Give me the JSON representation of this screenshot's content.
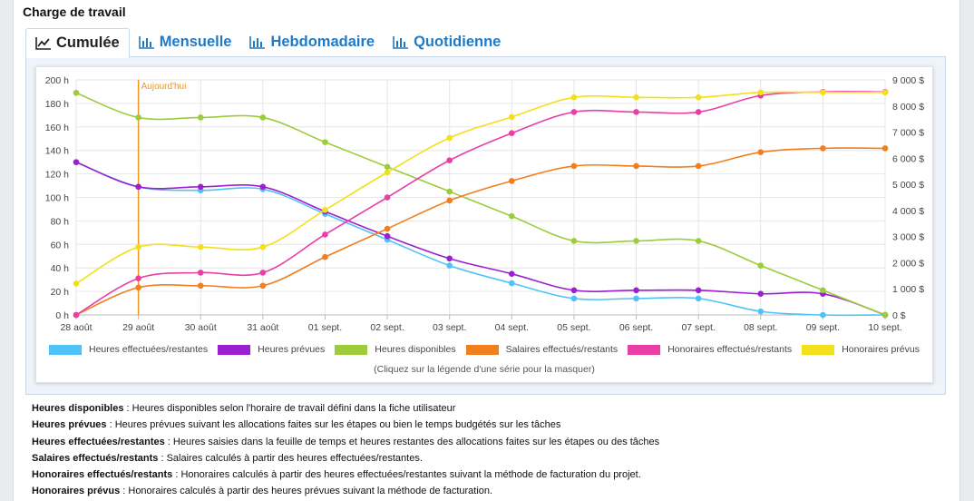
{
  "panel": {
    "title": "Charge de travail"
  },
  "tabs": [
    {
      "label": "Cumulée",
      "icon": "line-chart-icon",
      "active": true
    },
    {
      "label": "Mensuelle",
      "icon": "bar-chart-icon",
      "active": false
    },
    {
      "label": "Hebdomadaire",
      "icon": "bar-chart-icon",
      "active": false
    },
    {
      "label": "Quotidienne",
      "icon": "bar-chart-icon",
      "active": false
    }
  ],
  "chart_data": {
    "type": "line",
    "categories": [
      "28 août",
      "29 août",
      "30 août",
      "31 août",
      "01 sept.",
      "02 sept.",
      "03 sept.",
      "04 sept.",
      "05 sept.",
      "06 sept.",
      "07 sept.",
      "08 sept.",
      "09 sept.",
      "10 sept."
    ],
    "y_left": {
      "ticks": [
        "0 h",
        "20 h",
        "40 h",
        "60 h",
        "80 h",
        "100 h",
        "120 h",
        "140 h",
        "160 h",
        "180 h",
        "200 h"
      ],
      "range": [
        0,
        200
      ]
    },
    "y_right": {
      "ticks": [
        "0 $",
        "1 000 $",
        "2 000 $",
        "3 000 $",
        "4 000 $",
        "5 000 $",
        "6 000 $",
        "7 000 $",
        "8 000 $",
        "9 000 $"
      ],
      "range": [
        0,
        9000
      ]
    },
    "today_marker": {
      "label": "Aujourd'hui",
      "category": "29 août",
      "color": "#f0951f"
    },
    "grid": true,
    "legend_position": "bottom",
    "series": [
      {
        "name": "Heures effectuées/restantes",
        "axis": "left",
        "color": "#4fc3f7",
        "values": [
          130,
          109,
          106,
          107,
          86,
          64,
          42,
          27,
          14,
          14,
          14,
          3,
          0,
          0
        ]
      },
      {
        "name": "Heures prévues",
        "axis": "left",
        "color": "#9c1fd1",
        "values": [
          130,
          109,
          109,
          109,
          88,
          67,
          48,
          35,
          21,
          21,
          21,
          18,
          18,
          0
        ]
      },
      {
        "name": "Heures disponibles",
        "axis": "left",
        "color": "#9ccc3c",
        "values": [
          189,
          168,
          168,
          168,
          147,
          126,
          105,
          84,
          63,
          63,
          63,
          42,
          21,
          0
        ]
      },
      {
        "name": "Salaires effectués/restants",
        "axis": "right",
        "color": "#f07f1e",
        "values": [
          0,
          1050,
          1120,
          1120,
          2220,
          3300,
          4380,
          5130,
          5700,
          5700,
          5700,
          6230,
          6380,
          6380
        ]
      },
      {
        "name": "Honoraires effectués/restants",
        "axis": "right",
        "color": "#ea3ea7",
        "values": [
          0,
          1400,
          1620,
          1620,
          3080,
          4500,
          5920,
          6960,
          7770,
          7770,
          7770,
          8400,
          8540,
          8540
        ]
      },
      {
        "name": "Honoraires prévus",
        "axis": "right",
        "color": "#f2e11a",
        "values": [
          1200,
          2600,
          2600,
          2600,
          4020,
          5460,
          6780,
          7580,
          8330,
          8330,
          8330,
          8520,
          8520,
          8520
        ]
      }
    ]
  },
  "legend_hint": "(Cliquez sur la légende d'une série pour la masquer)",
  "definitions": [
    {
      "term": "Heures disponibles",
      "text": " : Heures disponibles selon l'horaire de travail défini dans la fiche utilisateur"
    },
    {
      "term": "Heures prévues",
      "text": " : Heures prévues suivant les allocations faites sur les étapes ou bien le temps budgétés sur les tâches"
    },
    {
      "term": "Heures effectuées/restantes",
      "text": " : Heures saisies dans la feuille de temps et heures restantes des allocations faites sur les étapes ou des tâches"
    },
    {
      "term": "Salaires effectués/restants",
      "text": " : Salaires calculés à partir des heures effectuées/restantes."
    },
    {
      "term": "Honoraires effectués/restants",
      "text": " : Honoraires calculés à partir des heures effectuées/restantes suivant la méthode de facturation du projet."
    },
    {
      "term": "Honoraires prévus",
      "text": " : Honoraires calculés à partir des heures prévues suivant la méthode de facturation."
    }
  ]
}
